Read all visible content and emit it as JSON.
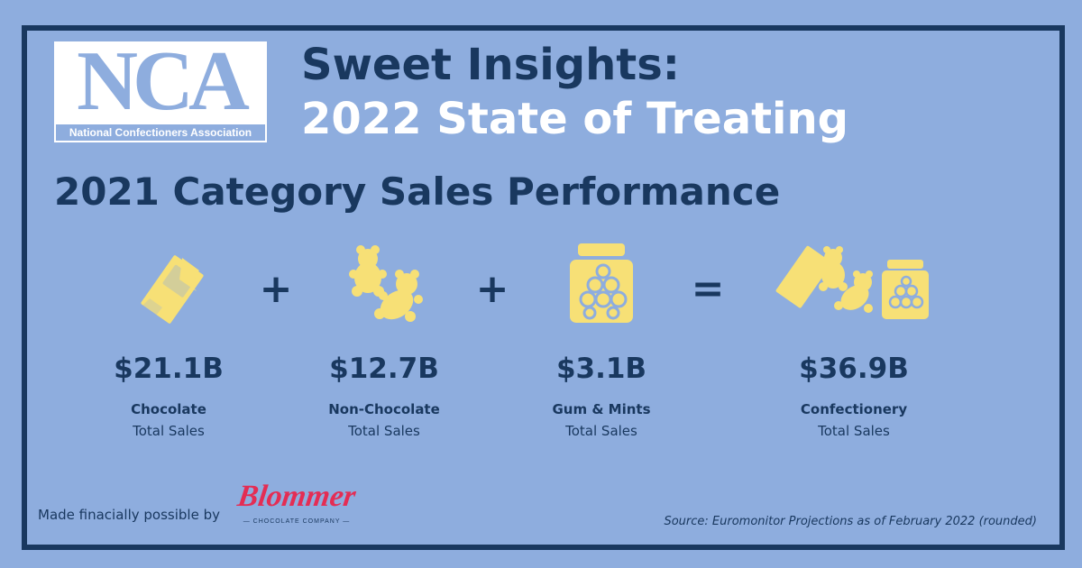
{
  "logo": {
    "letters": "NCA",
    "subtext": "National Confectioners Association"
  },
  "header": {
    "title_line_1": "Sweet Insights:",
    "title_line_2": "2022 State of Treating"
  },
  "subtitle": "2021 Category Sales Performance",
  "operators": {
    "plus_1": "+",
    "plus_2": "+",
    "equals": "="
  },
  "icons": {
    "chocolate": "chocolate-bar-icon",
    "non_chocolate": "gummy-bears-icon",
    "gum_mints": "candy-jar-icon",
    "confectionery": "combined-candy-icon"
  },
  "metrics": [
    {
      "value": "$21.1B",
      "name": "Chocolate",
      "label": "Total Sales"
    },
    {
      "value": "$12.7B",
      "name": "Non-Chocolate",
      "label": "Total Sales"
    },
    {
      "value": "$3.1B",
      "name": "Gum & Mints",
      "label": "Total Sales"
    },
    {
      "value": "$36.9B",
      "name": "Confectionery",
      "label": "Total Sales"
    }
  ],
  "sponsor": {
    "text": "Made finacially possible by",
    "brand": "Blommer",
    "tagline": "— CHOCOLATE COMPANY —"
  },
  "footer": {
    "source": "Source: Euromonitor Projections as of February 2022 (rounded)"
  },
  "colors": {
    "background": "#8eadde",
    "frame": "#19385f",
    "accent_text": "#19385f",
    "icon_fill": "#f7e076",
    "brand": "#e42d54",
    "white": "#ffffff"
  }
}
